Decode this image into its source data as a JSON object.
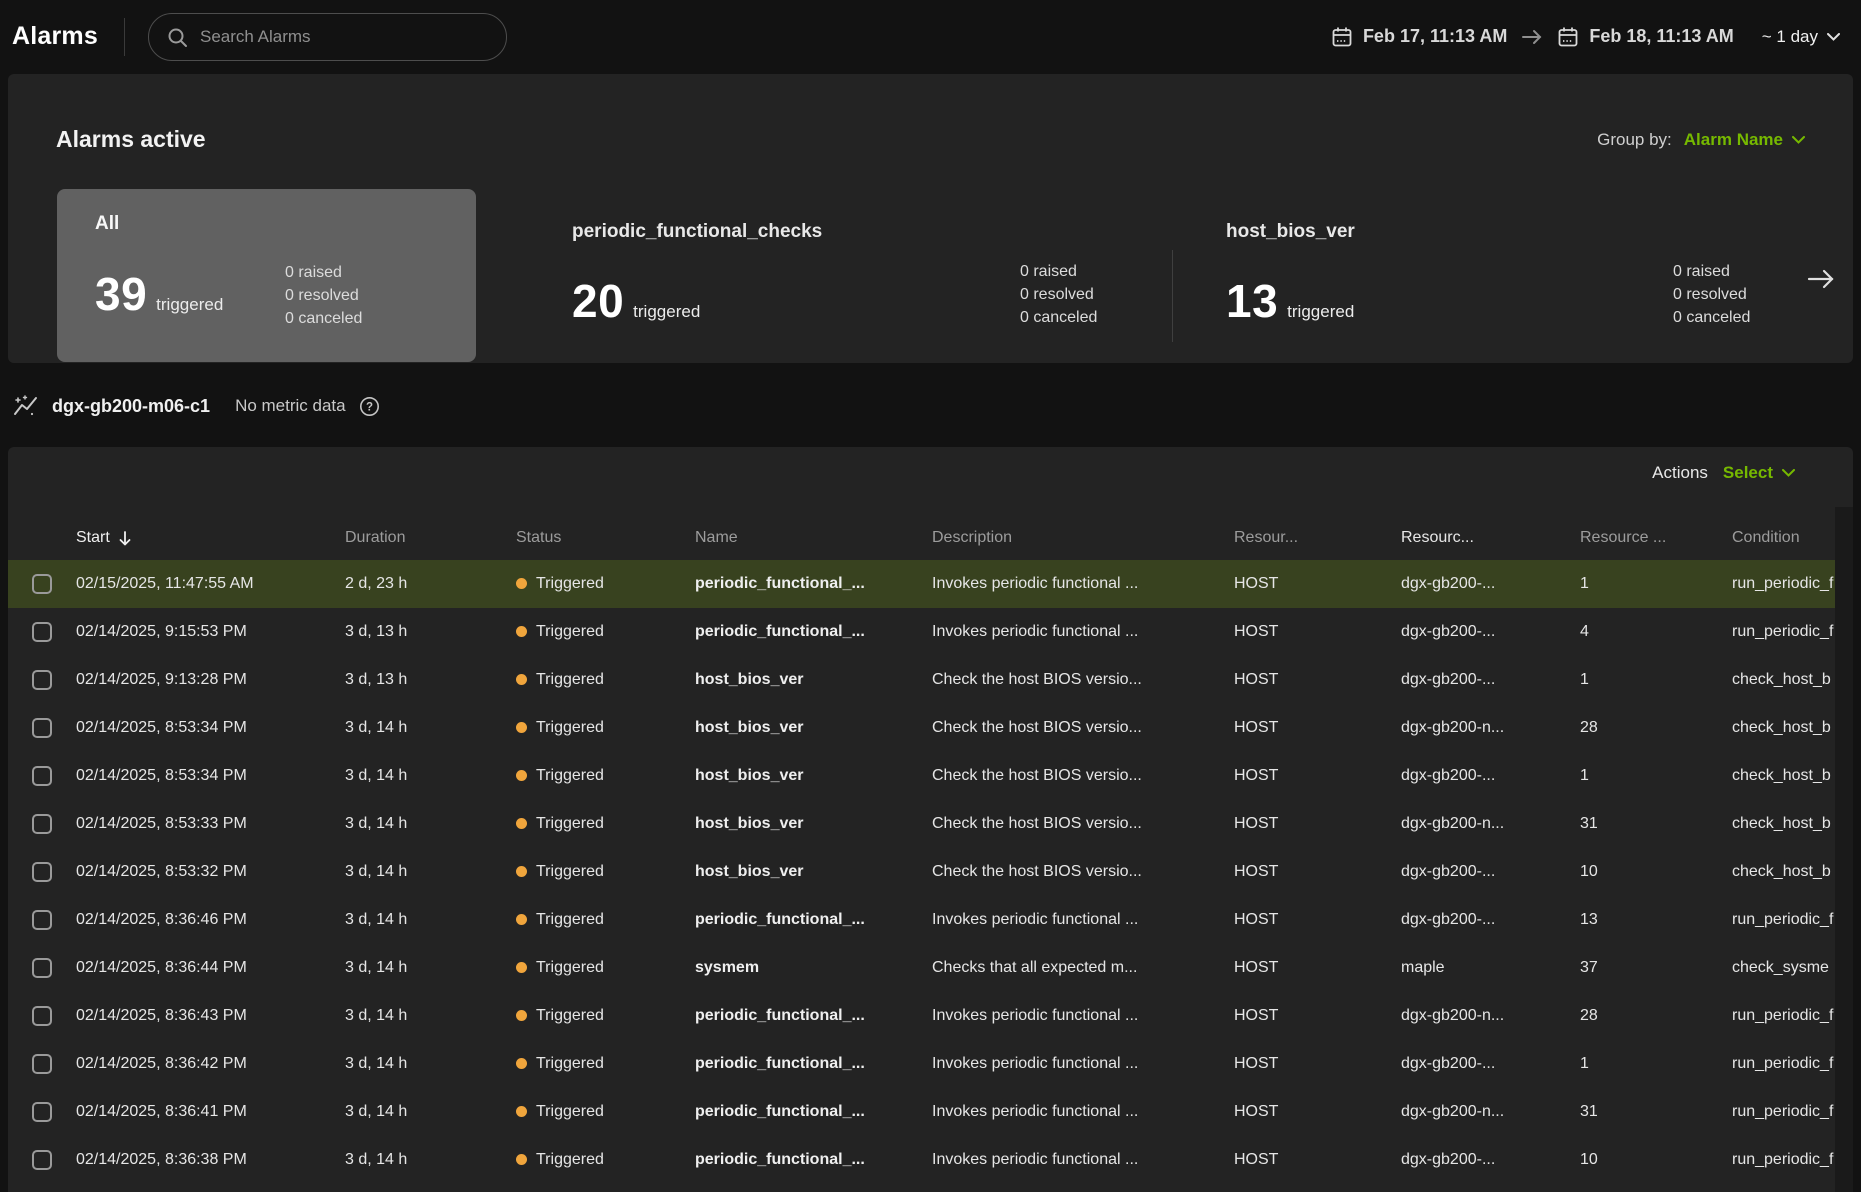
{
  "header": {
    "title": "Alarms",
    "search_placeholder": "Search Alarms",
    "date_from": "Feb 17, 11:13 AM",
    "date_to": "Feb 18, 11:13 AM",
    "range_label": "~ 1 day"
  },
  "alarms_active": {
    "title": "Alarms active",
    "group_by_label": "Group by:",
    "group_by_value": "Alarm Name",
    "cards": [
      {
        "name": "All",
        "count": "39",
        "count_label": "triggered",
        "stats": [
          "0 raised",
          "0 resolved",
          "0 canceled"
        ],
        "selected": true
      },
      {
        "name": "periodic_functional_checks",
        "count": "20",
        "count_label": "triggered",
        "stats": [
          "0 raised",
          "0 resolved",
          "0 canceled"
        ],
        "selected": false
      },
      {
        "name": "host_bios_ver",
        "count": "13",
        "count_label": "triggered",
        "stats": [
          "0 raised",
          "0 resolved",
          "0 canceled"
        ],
        "selected": false
      }
    ]
  },
  "metric_bar": {
    "resource": "dgx-gb200-m06-c1",
    "status": "No metric data"
  },
  "table": {
    "actions_label": "Actions",
    "actions_value": "Select",
    "columns": [
      "Start",
      "Duration",
      "Status",
      "Name",
      "Description",
      "Resour...",
      "Resourc...",
      "Resource ...",
      "Condition"
    ],
    "sorted_column": "Start",
    "rows": [
      {
        "start": "02/15/2025, 11:47:55 AM",
        "duration": "2 d, 23 h",
        "status": "Triggered",
        "name": "periodic_functional_...",
        "description": "Invokes periodic functional ...",
        "resource_type": "HOST",
        "resource_name": "dgx-gb200-...",
        "resource_id": "1",
        "condition": "run_periodic_f",
        "highlighted": true
      },
      {
        "start": "02/14/2025, 9:15:53 PM",
        "duration": "3 d, 13 h",
        "status": "Triggered",
        "name": "periodic_functional_...",
        "description": "Invokes periodic functional ...",
        "resource_type": "HOST",
        "resource_name": "dgx-gb200-...",
        "resource_id": "4",
        "condition": "run_periodic_f",
        "highlighted": false
      },
      {
        "start": "02/14/2025, 9:13:28 PM",
        "duration": "3 d, 13 h",
        "status": "Triggered",
        "name": "host_bios_ver",
        "description": "Check the host BIOS versio...",
        "resource_type": "HOST",
        "resource_name": "dgx-gb200-...",
        "resource_id": "1",
        "condition": "check_host_b",
        "highlighted": false
      },
      {
        "start": "02/14/2025, 8:53:34 PM",
        "duration": "3 d, 14 h",
        "status": "Triggered",
        "name": "host_bios_ver",
        "description": "Check the host BIOS versio...",
        "resource_type": "HOST",
        "resource_name": "dgx-gb200-n...",
        "resource_id": "28",
        "condition": "check_host_b",
        "highlighted": false
      },
      {
        "start": "02/14/2025, 8:53:34 PM",
        "duration": "3 d, 14 h",
        "status": "Triggered",
        "name": "host_bios_ver",
        "description": "Check the host BIOS versio...",
        "resource_type": "HOST",
        "resource_name": "dgx-gb200-...",
        "resource_id": "1",
        "condition": "check_host_b",
        "highlighted": false
      },
      {
        "start": "02/14/2025, 8:53:33 PM",
        "duration": "3 d, 14 h",
        "status": "Triggered",
        "name": "host_bios_ver",
        "description": "Check the host BIOS versio...",
        "resource_type": "HOST",
        "resource_name": "dgx-gb200-n...",
        "resource_id": "31",
        "condition": "check_host_b",
        "highlighted": false
      },
      {
        "start": "02/14/2025, 8:53:32 PM",
        "duration": "3 d, 14 h",
        "status": "Triggered",
        "name": "host_bios_ver",
        "description": "Check the host BIOS versio...",
        "resource_type": "HOST",
        "resource_name": "dgx-gb200-...",
        "resource_id": "10",
        "condition": "check_host_b",
        "highlighted": false
      },
      {
        "start": "02/14/2025, 8:36:46 PM",
        "duration": "3 d, 14 h",
        "status": "Triggered",
        "name": "periodic_functional_...",
        "description": "Invokes periodic functional ...",
        "resource_type": "HOST",
        "resource_name": "dgx-gb200-...",
        "resource_id": "13",
        "condition": "run_periodic_f",
        "highlighted": false
      },
      {
        "start": "02/14/2025, 8:36:44 PM",
        "duration": "3 d, 14 h",
        "status": "Triggered",
        "name": "sysmem",
        "description": "Checks that all expected m...",
        "resource_type": "HOST",
        "resource_name": "maple",
        "resource_id": "37",
        "condition": "check_sysme",
        "highlighted": false
      },
      {
        "start": "02/14/2025, 8:36:43 PM",
        "duration": "3 d, 14 h",
        "status": "Triggered",
        "name": "periodic_functional_...",
        "description": "Invokes periodic functional ...",
        "resource_type": "HOST",
        "resource_name": "dgx-gb200-n...",
        "resource_id": "28",
        "condition": "run_periodic_f",
        "highlighted": false
      },
      {
        "start": "02/14/2025, 8:36:42 PM",
        "duration": "3 d, 14 h",
        "status": "Triggered",
        "name": "periodic_functional_...",
        "description": "Invokes periodic functional ...",
        "resource_type": "HOST",
        "resource_name": "dgx-gb200-...",
        "resource_id": "1",
        "condition": "run_periodic_f",
        "highlighted": false
      },
      {
        "start": "02/14/2025, 8:36:41 PM",
        "duration": "3 d, 14 h",
        "status": "Triggered",
        "name": "periodic_functional_...",
        "description": "Invokes periodic functional ...",
        "resource_type": "HOST",
        "resource_name": "dgx-gb200-n...",
        "resource_id": "31",
        "condition": "run_periodic_f",
        "highlighted": false
      },
      {
        "start": "02/14/2025, 8:36:38 PM",
        "duration": "3 d, 14 h",
        "status": "Triggered",
        "name": "periodic_functional_...",
        "description": "Invokes periodic functional ...",
        "resource_type": "HOST",
        "resource_name": "dgx-gb200-...",
        "resource_id": "10",
        "condition": "run_periodic_f",
        "highlighted": false
      }
    ]
  },
  "colors": {
    "accent_green": "#76b900",
    "status_orange": "#f0a53c",
    "row_highlight": "#38421f",
    "panel_bg": "#232323",
    "selected_card_bg": "#616161"
  }
}
